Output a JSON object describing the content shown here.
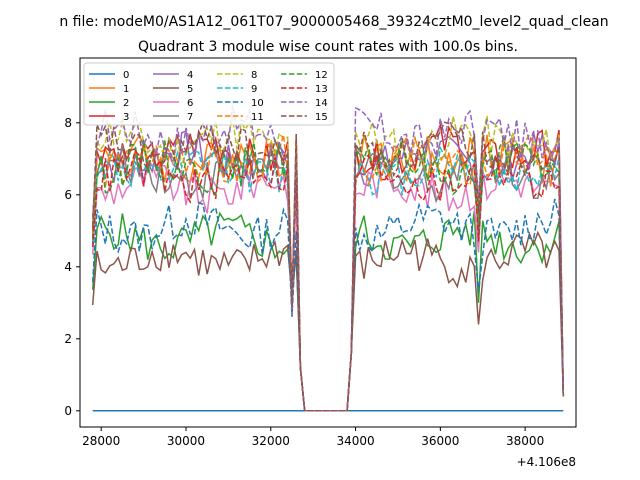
{
  "chart_data": {
    "type": "line",
    "suptitle": "n file: modeM0/AS1A12_061T07_9000005468_39324cztM0_level2_quad_clean",
    "title": "Quadrant 3 module wise count rates with 100.0s bins.",
    "xlabel": "",
    "ylabel": "",
    "offset_label": "+4.106e8",
    "xlim": [
      27500,
      39200
    ],
    "ylim": [
      -0.45,
      9.8
    ],
    "xticks": [
      28000,
      30000,
      32000,
      34000,
      36000,
      38000
    ],
    "xtick_labels": [
      "28000",
      "30000",
      "32000",
      "34000",
      "36000",
      "38000"
    ],
    "yticks": [
      0,
      2,
      4,
      6,
      8
    ],
    "ytick_labels": [
      "0",
      "2",
      "4",
      "6",
      "8"
    ],
    "grid": false,
    "legend_position": "upper-left",
    "legend_ncol": 4,
    "colors": [
      "#1f77b4",
      "#ff7f0e",
      "#2ca02c",
      "#d62728",
      "#9467bd",
      "#8c564b",
      "#e377c2",
      "#7f7f7f",
      "#bcbd22",
      "#17becf"
    ],
    "x_range": [
      27800,
      38900
    ],
    "gap_range": [
      32800,
      33800
    ],
    "series": [
      {
        "name": "0",
        "level": 0.0,
        "dashed": false
      },
      {
        "name": "1",
        "level": 7.0,
        "dashed": false
      },
      {
        "name": "2",
        "level": 4.8,
        "dashed": false
      },
      {
        "name": "3",
        "level": 7.2,
        "dashed": false
      },
      {
        "name": "4",
        "level": 7.0,
        "dashed": false
      },
      {
        "name": "5",
        "level": 4.2,
        "dashed": false
      },
      {
        "name": "6",
        "level": 6.2,
        "dashed": false
      },
      {
        "name": "7",
        "level": 6.6,
        "dashed": false
      },
      {
        "name": "8",
        "level": 7.5,
        "dashed": true
      },
      {
        "name": "9",
        "level": 6.7,
        "dashed": true
      },
      {
        "name": "10",
        "level": 5.1,
        "dashed": true
      },
      {
        "name": "11",
        "level": 6.9,
        "dashed": true
      },
      {
        "name": "12",
        "level": 6.8,
        "dashed": true
      },
      {
        "name": "13",
        "level": 6.5,
        "dashed": true
      },
      {
        "name": "14",
        "level": 7.7,
        "dashed": true
      },
      {
        "name": "15",
        "level": 7.3,
        "dashed": true
      }
    ]
  }
}
